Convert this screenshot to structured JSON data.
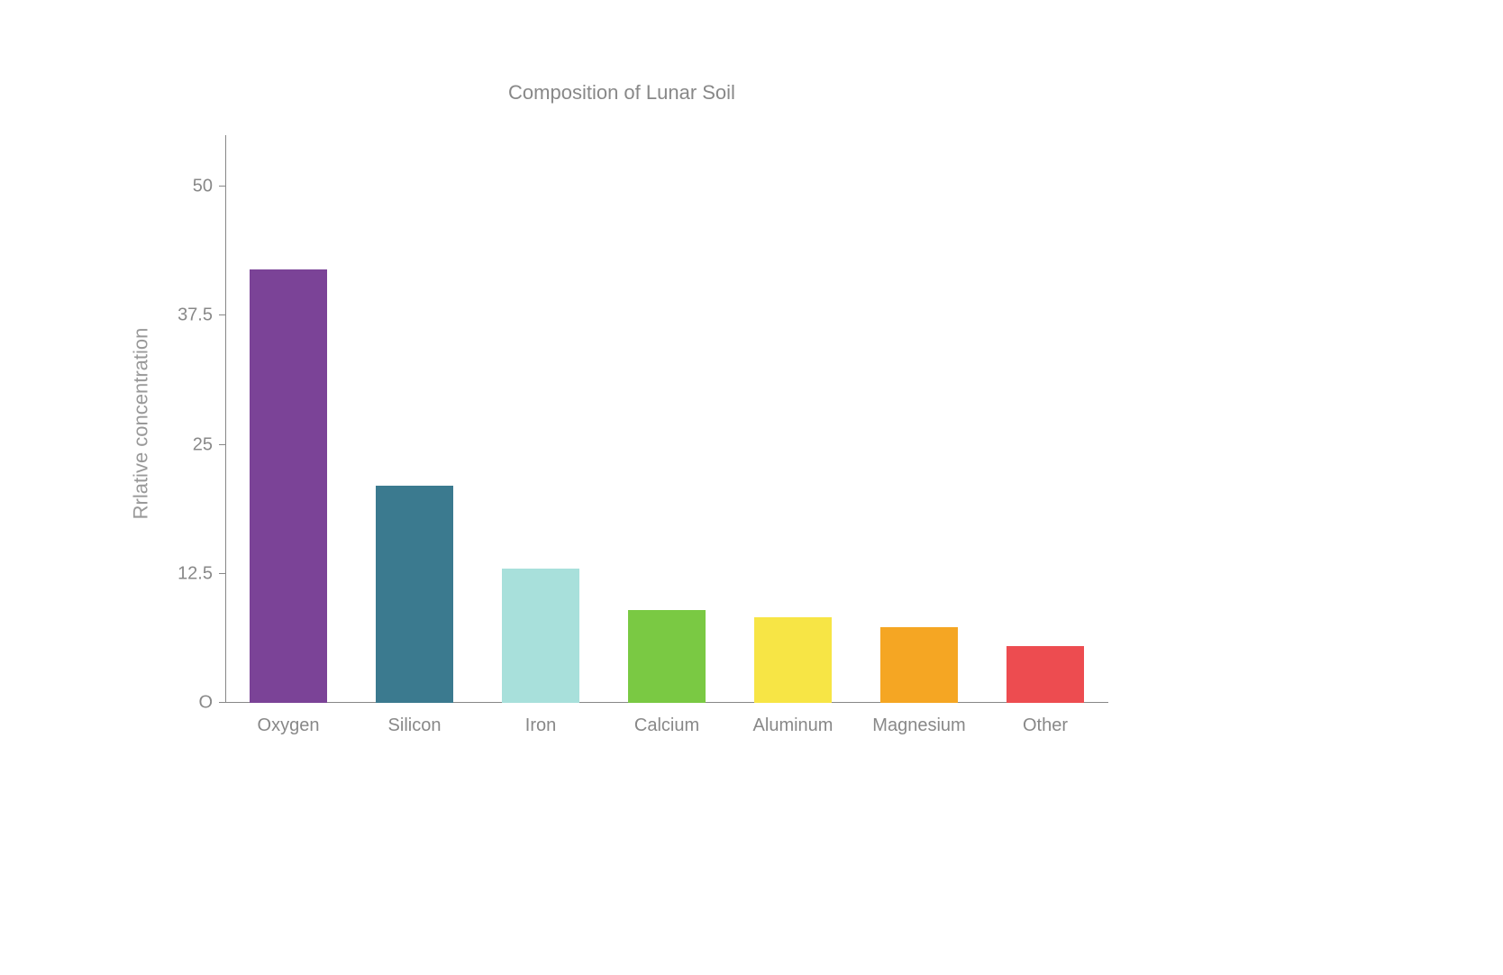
{
  "chart": {
    "type": "bar",
    "title": "Composition of Lunar Soil",
    "title_fontsize": 22,
    "title_color": "#888888",
    "ylabel": "Rrlative concentration",
    "ylabel_fontsize": 22,
    "ylabel_color": "#999999",
    "background_color": "#ffffff",
    "axis_color": "#888888",
    "tick_label_color": "#888888",
    "tick_label_fontsize": 20,
    "ylim": [
      0,
      55
    ],
    "yticks": [
      0,
      12.5,
      25,
      37.5,
      50
    ],
    "ytick_labels": [
      "O",
      "12.5",
      "25",
      "37.5",
      "50"
    ],
    "categories": [
      "Oxygen",
      "Silicon",
      "Iron",
      "Calcium",
      "Aluminum",
      "Magnesium",
      "Other"
    ],
    "values": [
      42,
      21,
      13,
      9,
      8.3,
      7.3,
      5.5
    ],
    "bar_colors": [
      "#7b4397",
      "#3b7a8f",
      "#a8e0db",
      "#7ac943",
      "#f7e545",
      "#f5a623",
      "#ed4c50"
    ],
    "bar_width_ratio": 0.62
  }
}
